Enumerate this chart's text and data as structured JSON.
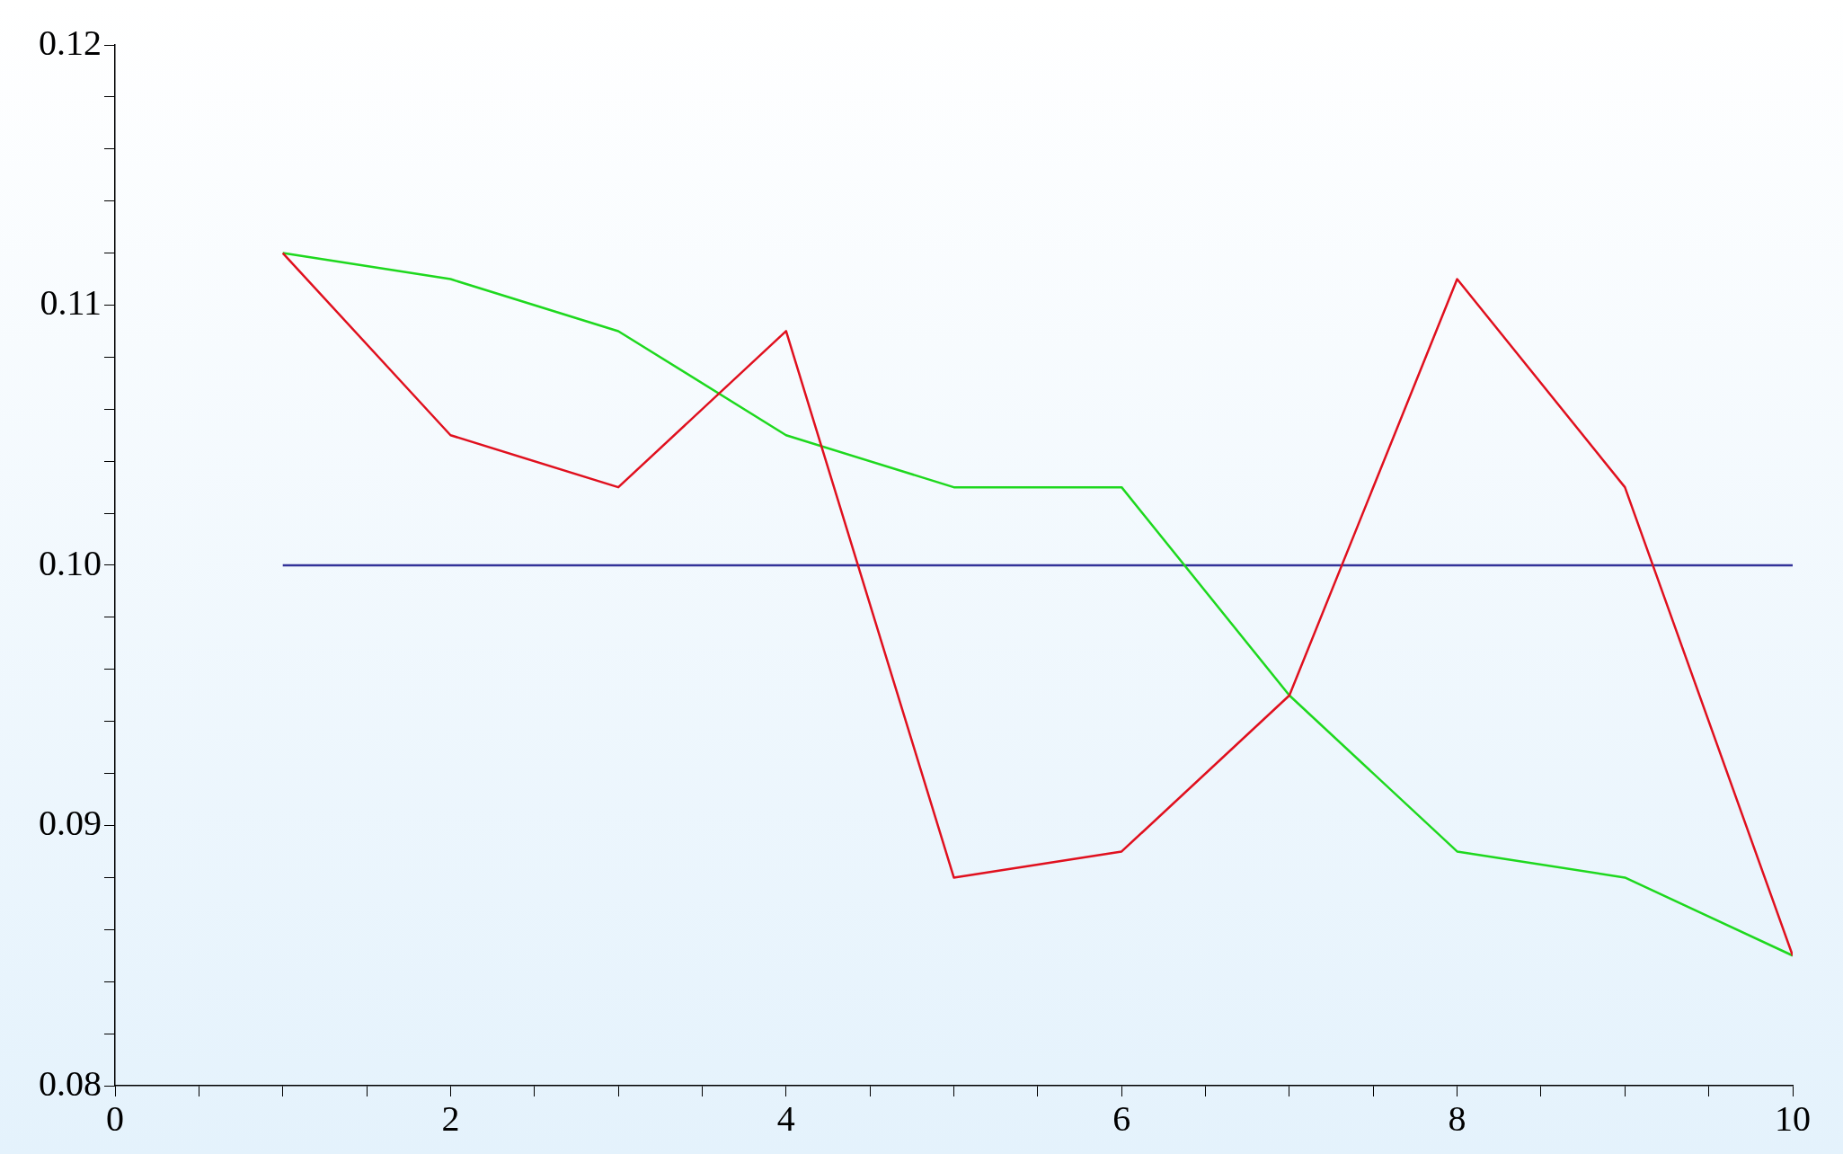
{
  "chart_data": {
    "type": "line",
    "x": [
      1,
      2,
      3,
      4,
      5,
      6,
      7,
      8,
      9,
      10
    ],
    "series": [
      {
        "color": "#e0101e",
        "values": [
          0.112,
          0.105,
          0.103,
          0.109,
          0.088,
          0.089,
          0.095,
          0.111,
          0.103,
          0.085
        ]
      },
      {
        "color": "#1ed81e",
        "values": [
          0.112,
          0.111,
          0.109,
          0.105,
          0.103,
          0.103,
          0.095,
          0.089,
          0.088,
          0.085
        ]
      },
      {
        "color": "#333399",
        "values": [
          0.1,
          0.1,
          0.1,
          0.1,
          0.1,
          0.1,
          0.1,
          0.1,
          0.1,
          0.1
        ]
      }
    ],
    "xlim": [
      0,
      10
    ],
    "xticks": [
      0,
      {
        "value": 0.5,
        "label": null
      },
      {
        "value": 1,
        "label": null
      },
      {
        "value": 1.5,
        "label": null
      },
      2,
      {
        "value": 2.5,
        "label": null
      },
      {
        "value": 3,
        "label": null
      },
      {
        "value": 3.5,
        "label": null
      },
      4,
      {
        "value": 4.5,
        "label": null
      },
      {
        "value": 5,
        "label": null
      },
      {
        "value": 5.5,
        "label": null
      },
      6,
      {
        "value": 6.5,
        "label": null
      },
      {
        "value": 7,
        "label": null
      },
      {
        "value": 7.5,
        "label": null
      },
      8,
      {
        "value": 8.5,
        "label": null
      },
      {
        "value": 9,
        "label": null
      },
      {
        "value": 9.5,
        "label": null
      },
      10
    ],
    "ylim": [
      0.08,
      0.12
    ],
    "yticks": [
      {
        "value": 0.08,
        "label": "0.08"
      },
      {
        "value": 0.082,
        "label": null
      },
      {
        "value": 0.084,
        "label": null
      },
      {
        "value": 0.086,
        "label": null
      },
      {
        "value": 0.088,
        "label": null
      },
      {
        "value": 0.09,
        "label": "0.09"
      },
      {
        "value": 0.092,
        "label": null
      },
      {
        "value": 0.094,
        "label": null
      },
      {
        "value": 0.096,
        "label": null
      },
      {
        "value": 0.098,
        "label": null
      },
      {
        "value": 0.1,
        "label": "0.10"
      },
      {
        "value": 0.102,
        "label": null
      },
      {
        "value": 0.104,
        "label": null
      },
      {
        "value": 0.106,
        "label": null
      },
      {
        "value": 0.108,
        "label": null
      },
      {
        "value": 0.11,
        "label": "0.11"
      },
      {
        "value": 0.112,
        "label": null
      },
      {
        "value": 0.114,
        "label": null
      },
      {
        "value": 0.116,
        "label": null
      },
      {
        "value": 0.118,
        "label": null
      },
      {
        "value": 0.12,
        "label": "0.12"
      }
    ],
    "grid": false,
    "legend": false,
    "marker": "none",
    "line_style": "solid"
  }
}
